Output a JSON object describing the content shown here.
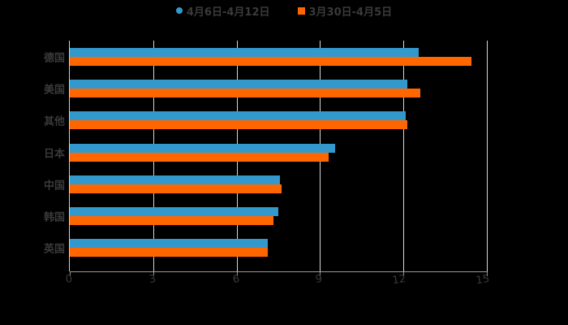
{
  "chart_data": {
    "type": "bar",
    "orientation": "horizontal",
    "title": "",
    "xlabel": "",
    "ylabel": "",
    "categories": [
      "德国",
      "美国",
      "其他",
      "日本",
      "中国",
      "韩国",
      "英国"
    ],
    "series": [
      {
        "name": "4月6日-4月12日",
        "color": "#3399cc",
        "values": [
          12.56,
          12.13,
          12.07,
          9.55,
          7.56,
          7.5,
          7.13
        ]
      },
      {
        "name": "3月30日-4月5日",
        "color": "#ff6600",
        "values": [
          14.45,
          12.6,
          12.13,
          9.31,
          7.62,
          7.33,
          7.13
        ]
      }
    ],
    "xlim": [
      0,
      15
    ],
    "xticks": [
      "0",
      "3",
      "6",
      "9",
      "12",
      "15"
    ],
    "grid": true,
    "legend_position": "top"
  },
  "legend": {
    "items": [
      {
        "label": "4月6日-4月12日",
        "color": "#3399cc",
        "shape": "circle"
      },
      {
        "label": "3月30日-4月5日",
        "color": "#ff6600",
        "shape": "square"
      }
    ]
  }
}
